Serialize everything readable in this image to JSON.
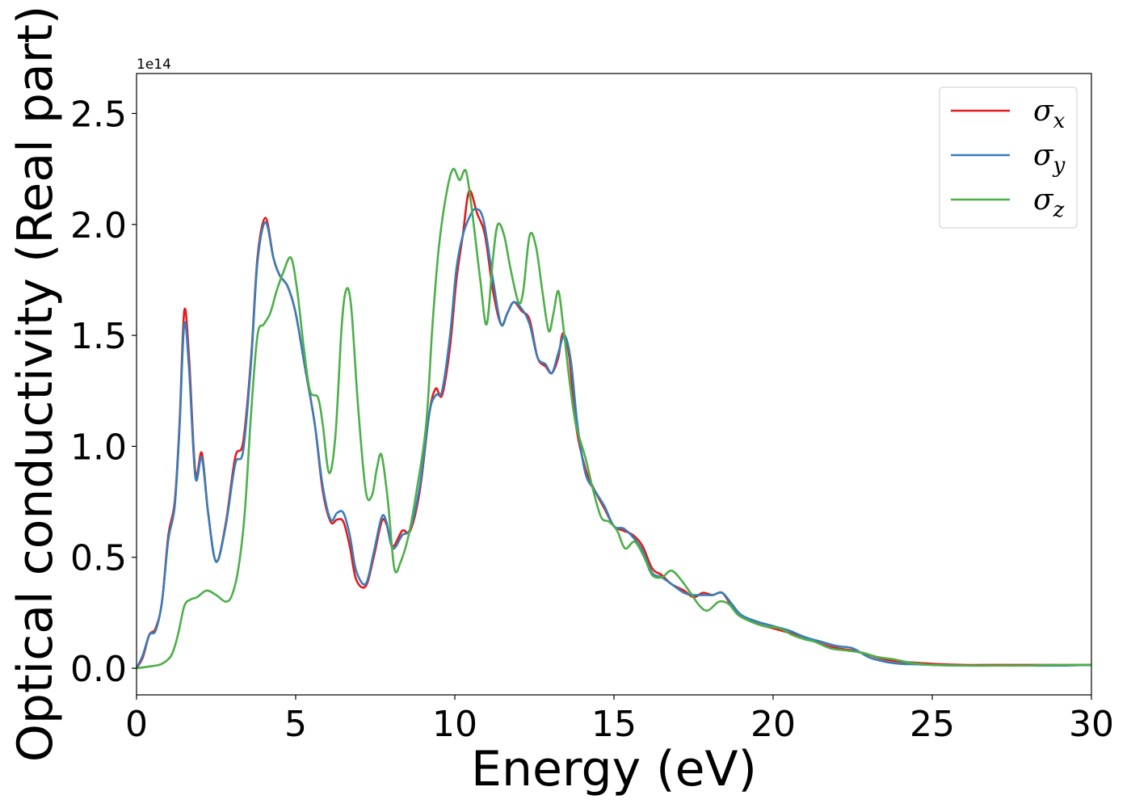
{
  "chart_data": {
    "type": "line",
    "xlabel": "Energy (eV)",
    "ylabel": "Optical conductivity (Real part)",
    "y_offset_label": "1e14",
    "xlim": [
      0,
      30
    ],
    "ylim": [
      -0.12,
      2.68
    ],
    "xticks": [
      0,
      5,
      10,
      15,
      20,
      25,
      30
    ],
    "xtick_labels": [
      "0",
      "5",
      "10",
      "15",
      "20",
      "25",
      "30"
    ],
    "yticks": [
      0.0,
      0.5,
      1.0,
      1.5,
      2.0,
      2.5
    ],
    "ytick_labels": [
      "0.0",
      "0.5",
      "1.0",
      "1.5",
      "2.0",
      "2.5"
    ],
    "grid": false,
    "legend_position": "top-right",
    "series": [
      {
        "name": "σx",
        "legend_base": "σ",
        "legend_sub": "x",
        "color": "#e41a1c",
        "points": [
          [
            0,
            0
          ],
          [
            0.2,
            0.05
          ],
          [
            0.4,
            0.15
          ],
          [
            0.6,
            0.18
          ],
          [
            0.8,
            0.3
          ],
          [
            1.0,
            0.6
          ],
          [
            1.2,
            0.75
          ],
          [
            1.35,
            1.1
          ],
          [
            1.5,
            1.61
          ],
          [
            1.65,
            1.4
          ],
          [
            1.85,
            0.88
          ],
          [
            2.05,
            0.97
          ],
          [
            2.25,
            0.7
          ],
          [
            2.5,
            0.48
          ],
          [
            2.8,
            0.65
          ],
          [
            3.1,
            0.95
          ],
          [
            3.35,
            1.02
          ],
          [
            3.6,
            1.4
          ],
          [
            3.8,
            1.85
          ],
          [
            4.05,
            2.03
          ],
          [
            4.3,
            1.85
          ],
          [
            4.5,
            1.77
          ],
          [
            4.75,
            1.72
          ],
          [
            5.0,
            1.6
          ],
          [
            5.3,
            1.35
          ],
          [
            5.6,
            1.1
          ],
          [
            5.85,
            0.8
          ],
          [
            6.1,
            0.66
          ],
          [
            6.3,
            0.67
          ],
          [
            6.5,
            0.66
          ],
          [
            6.7,
            0.55
          ],
          [
            6.9,
            0.4
          ],
          [
            7.2,
            0.37
          ],
          [
            7.45,
            0.5
          ],
          [
            7.7,
            0.66
          ],
          [
            7.85,
            0.65
          ],
          [
            8.05,
            0.55
          ],
          [
            8.35,
            0.62
          ],
          [
            8.6,
            0.62
          ],
          [
            8.9,
            0.8
          ],
          [
            9.2,
            1.15
          ],
          [
            9.4,
            1.26
          ],
          [
            9.6,
            1.23
          ],
          [
            9.85,
            1.45
          ],
          [
            10.05,
            1.75
          ],
          [
            10.25,
            1.95
          ],
          [
            10.45,
            2.15
          ],
          [
            10.7,
            2.05
          ],
          [
            10.95,
            1.95
          ],
          [
            11.2,
            1.7
          ],
          [
            11.45,
            1.55
          ],
          [
            11.65,
            1.6
          ],
          [
            11.85,
            1.65
          ],
          [
            12.1,
            1.61
          ],
          [
            12.35,
            1.57
          ],
          [
            12.6,
            1.4
          ],
          [
            12.85,
            1.36
          ],
          [
            13.05,
            1.33
          ],
          [
            13.25,
            1.4
          ],
          [
            13.4,
            1.51
          ],
          [
            13.6,
            1.4
          ],
          [
            13.8,
            1.1
          ],
          [
            14.1,
            0.9
          ],
          [
            14.4,
            0.8
          ],
          [
            14.7,
            0.72
          ],
          [
            15.0,
            0.64
          ],
          [
            15.3,
            0.62
          ],
          [
            15.6,
            0.6
          ],
          [
            15.9,
            0.55
          ],
          [
            16.2,
            0.45
          ],
          [
            16.5,
            0.42
          ],
          [
            16.8,
            0.38
          ],
          [
            17.2,
            0.35
          ],
          [
            17.5,
            0.32
          ],
          [
            17.8,
            0.34
          ],
          [
            18.1,
            0.33
          ],
          [
            18.4,
            0.34
          ],
          [
            18.7,
            0.28
          ],
          [
            19.0,
            0.24
          ],
          [
            19.5,
            0.2
          ],
          [
            20.0,
            0.18
          ],
          [
            20.5,
            0.16
          ],
          [
            21.0,
            0.14
          ],
          [
            21.5,
            0.11
          ],
          [
            22.0,
            0.09
          ],
          [
            22.5,
            0.08
          ],
          [
            23.0,
            0.06
          ],
          [
            23.5,
            0.04
          ],
          [
            24.0,
            0.03
          ],
          [
            24.5,
            0.025
          ],
          [
            25.0,
            0.02
          ],
          [
            26.0,
            0.015
          ],
          [
            27.0,
            0.015
          ],
          [
            28.0,
            0.015
          ],
          [
            29.0,
            0.015
          ],
          [
            30.0,
            0.015
          ]
        ]
      },
      {
        "name": "σy",
        "legend_base": "σ",
        "legend_sub": "y",
        "color": "#377eb8",
        "points": [
          [
            0,
            0
          ],
          [
            0.2,
            0.06
          ],
          [
            0.4,
            0.15
          ],
          [
            0.6,
            0.17
          ],
          [
            0.8,
            0.3
          ],
          [
            1.0,
            0.58
          ],
          [
            1.2,
            0.73
          ],
          [
            1.35,
            1.08
          ],
          [
            1.5,
            1.55
          ],
          [
            1.65,
            1.35
          ],
          [
            1.85,
            0.86
          ],
          [
            2.05,
            0.95
          ],
          [
            2.25,
            0.7
          ],
          [
            2.5,
            0.48
          ],
          [
            2.8,
            0.64
          ],
          [
            3.1,
            0.92
          ],
          [
            3.35,
            0.98
          ],
          [
            3.6,
            1.38
          ],
          [
            3.8,
            1.83
          ],
          [
            4.05,
            2.01
          ],
          [
            4.3,
            1.85
          ],
          [
            4.5,
            1.77
          ],
          [
            4.75,
            1.72
          ],
          [
            5.0,
            1.6
          ],
          [
            5.3,
            1.35
          ],
          [
            5.6,
            1.1
          ],
          [
            5.85,
            0.82
          ],
          [
            6.1,
            0.67
          ],
          [
            6.3,
            0.7
          ],
          [
            6.5,
            0.7
          ],
          [
            6.7,
            0.6
          ],
          [
            6.9,
            0.44
          ],
          [
            7.2,
            0.38
          ],
          [
            7.45,
            0.52
          ],
          [
            7.7,
            0.68
          ],
          [
            7.85,
            0.66
          ],
          [
            8.05,
            0.54
          ],
          [
            8.35,
            0.6
          ],
          [
            8.6,
            0.63
          ],
          [
            8.9,
            0.82
          ],
          [
            9.2,
            1.15
          ],
          [
            9.4,
            1.23
          ],
          [
            9.6,
            1.25
          ],
          [
            9.85,
            1.5
          ],
          [
            10.05,
            1.8
          ],
          [
            10.25,
            1.95
          ],
          [
            10.45,
            2.03
          ],
          [
            10.65,
            2.07
          ],
          [
            10.9,
            2.02
          ],
          [
            11.2,
            1.75
          ],
          [
            11.45,
            1.55
          ],
          [
            11.65,
            1.6
          ],
          [
            11.85,
            1.65
          ],
          [
            12.1,
            1.62
          ],
          [
            12.35,
            1.55
          ],
          [
            12.6,
            1.4
          ],
          [
            12.85,
            1.37
          ],
          [
            13.05,
            1.33
          ],
          [
            13.25,
            1.42
          ],
          [
            13.45,
            1.5
          ],
          [
            13.65,
            1.38
          ],
          [
            13.85,
            1.1
          ],
          [
            14.1,
            0.88
          ],
          [
            14.4,
            0.8
          ],
          [
            14.7,
            0.73
          ],
          [
            15.0,
            0.64
          ],
          [
            15.3,
            0.63
          ],
          [
            15.6,
            0.59
          ],
          [
            15.9,
            0.53
          ],
          [
            16.2,
            0.43
          ],
          [
            16.5,
            0.41
          ],
          [
            16.8,
            0.38
          ],
          [
            17.2,
            0.34
          ],
          [
            17.5,
            0.33
          ],
          [
            17.8,
            0.33
          ],
          [
            18.1,
            0.33
          ],
          [
            18.4,
            0.34
          ],
          [
            18.7,
            0.29
          ],
          [
            19.0,
            0.24
          ],
          [
            19.5,
            0.21
          ],
          [
            20.0,
            0.19
          ],
          [
            20.5,
            0.17
          ],
          [
            21.0,
            0.14
          ],
          [
            21.5,
            0.12
          ],
          [
            22.0,
            0.1
          ],
          [
            22.5,
            0.09
          ],
          [
            23.0,
            0.05
          ],
          [
            23.5,
            0.03
          ],
          [
            24.0,
            0.02
          ],
          [
            24.5,
            0.018
          ],
          [
            25.0,
            0.015
          ],
          [
            26.0,
            0.012
          ],
          [
            27.0,
            0.012
          ],
          [
            28.0,
            0.012
          ],
          [
            29.0,
            0.012
          ],
          [
            30.0,
            0.015
          ]
        ]
      },
      {
        "name": "σz",
        "legend_base": "σ",
        "legend_sub": "z",
        "color": "#4daf4a",
        "points": [
          [
            0,
            0
          ],
          [
            0.5,
            0.01
          ],
          [
            0.8,
            0.02
          ],
          [
            1.1,
            0.06
          ],
          [
            1.3,
            0.15
          ],
          [
            1.5,
            0.28
          ],
          [
            1.7,
            0.31
          ],
          [
            1.9,
            0.32
          ],
          [
            2.2,
            0.35
          ],
          [
            2.5,
            0.33
          ],
          [
            2.8,
            0.3
          ],
          [
            3.0,
            0.33
          ],
          [
            3.2,
            0.45
          ],
          [
            3.4,
            0.7
          ],
          [
            3.6,
            1.15
          ],
          [
            3.8,
            1.5
          ],
          [
            4.0,
            1.55
          ],
          [
            4.2,
            1.6
          ],
          [
            4.4,
            1.7
          ],
          [
            4.6,
            1.78
          ],
          [
            4.85,
            1.85
          ],
          [
            5.05,
            1.7
          ],
          [
            5.25,
            1.45
          ],
          [
            5.45,
            1.25
          ],
          [
            5.7,
            1.22
          ],
          [
            5.85,
            1.1
          ],
          [
            6.05,
            0.88
          ],
          [
            6.25,
            1.05
          ],
          [
            6.45,
            1.55
          ],
          [
            6.6,
            1.71
          ],
          [
            6.75,
            1.62
          ],
          [
            6.95,
            1.2
          ],
          [
            7.2,
            0.8
          ],
          [
            7.4,
            0.78
          ],
          [
            7.55,
            0.9
          ],
          [
            7.7,
            0.96
          ],
          [
            7.9,
            0.75
          ],
          [
            8.1,
            0.45
          ],
          [
            8.3,
            0.48
          ],
          [
            8.55,
            0.6
          ],
          [
            8.8,
            0.8
          ],
          [
            9.1,
            1.1
          ],
          [
            9.3,
            1.55
          ],
          [
            9.5,
            1.9
          ],
          [
            9.75,
            2.15
          ],
          [
            9.95,
            2.25
          ],
          [
            10.15,
            2.2
          ],
          [
            10.35,
            2.24
          ],
          [
            10.55,
            2.05
          ],
          [
            10.8,
            1.75
          ],
          [
            11.0,
            1.55
          ],
          [
            11.2,
            1.85
          ],
          [
            11.35,
            2.0
          ],
          [
            11.55,
            1.95
          ],
          [
            11.75,
            1.8
          ],
          [
            12.0,
            1.65
          ],
          [
            12.15,
            1.7
          ],
          [
            12.35,
            1.95
          ],
          [
            12.55,
            1.9
          ],
          [
            12.75,
            1.7
          ],
          [
            12.95,
            1.52
          ],
          [
            13.1,
            1.6
          ],
          [
            13.25,
            1.7
          ],
          [
            13.4,
            1.55
          ],
          [
            13.6,
            1.3
          ],
          [
            13.8,
            1.1
          ],
          [
            14.1,
            0.95
          ],
          [
            14.35,
            0.8
          ],
          [
            14.6,
            0.68
          ],
          [
            14.85,
            0.66
          ],
          [
            15.1,
            0.62
          ],
          [
            15.35,
            0.54
          ],
          [
            15.65,
            0.57
          ],
          [
            15.95,
            0.5
          ],
          [
            16.2,
            0.42
          ],
          [
            16.5,
            0.41
          ],
          [
            16.8,
            0.44
          ],
          [
            17.1,
            0.4
          ],
          [
            17.4,
            0.34
          ],
          [
            17.7,
            0.28
          ],
          [
            17.95,
            0.26
          ],
          [
            18.3,
            0.3
          ],
          [
            18.6,
            0.29
          ],
          [
            18.9,
            0.24
          ],
          [
            19.3,
            0.21
          ],
          [
            19.7,
            0.19
          ],
          [
            20.2,
            0.18
          ],
          [
            20.6,
            0.15
          ],
          [
            21.0,
            0.13
          ],
          [
            21.3,
            0.12
          ],
          [
            21.8,
            0.09
          ],
          [
            22.3,
            0.08
          ],
          [
            22.8,
            0.07
          ],
          [
            23.3,
            0.05
          ],
          [
            23.8,
            0.04
          ],
          [
            24.3,
            0.025
          ],
          [
            25.0,
            0.015
          ],
          [
            26.0,
            0.012
          ],
          [
            27.0,
            0.012
          ],
          [
            28.0,
            0.012
          ],
          [
            29.0,
            0.015
          ],
          [
            30.0,
            0.015
          ]
        ]
      }
    ]
  }
}
